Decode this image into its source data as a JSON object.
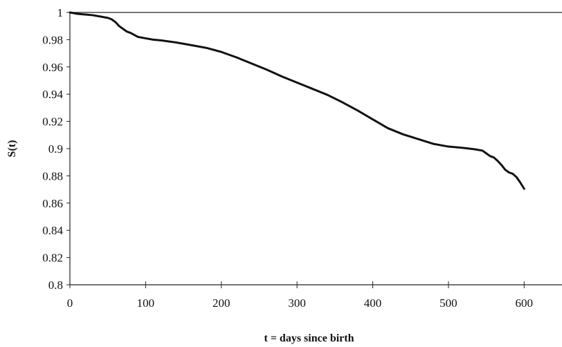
{
  "chart_data": {
    "type": "line",
    "title": "",
    "xlabel": "t = days since birth",
    "ylabel": "S(t)",
    "xlim": [
      0,
      650
    ],
    "ylim": [
      0.8,
      1.0
    ],
    "x_ticks": [
      0,
      100,
      200,
      300,
      400,
      500,
      600
    ],
    "x_tick_labels": [
      "0",
      "100",
      "200",
      "300",
      "400",
      "500",
      "600"
    ],
    "y_ticks": [
      0.8,
      0.82,
      0.84,
      0.86,
      0.88,
      0.9,
      0.92,
      0.94,
      0.96,
      0.98,
      1.0
    ],
    "y_tick_labels": [
      "0.8",
      "0.82",
      "0.84",
      "0.86",
      "0.88",
      "0.9",
      "0.92",
      "0.94",
      "0.96",
      "0.98",
      "1"
    ],
    "grid": false,
    "legend": "none",
    "series": [
      {
        "color": "#111111",
        "x": [
          0,
          5,
          10,
          20,
          30,
          40,
          50,
          55,
          60,
          65,
          70,
          75,
          80,
          90,
          100,
          110,
          120,
          140,
          160,
          180,
          200,
          220,
          240,
          260,
          280,
          300,
          320,
          340,
          360,
          380,
          400,
          420,
          440,
          460,
          480,
          500,
          520,
          535,
          545,
          550,
          555,
          560,
          565,
          570,
          575,
          580,
          585,
          590,
          595,
          600
        ],
        "y": [
          1.0,
          0.9995,
          0.999,
          0.9985,
          0.998,
          0.997,
          0.996,
          0.995,
          0.993,
          0.99,
          0.988,
          0.986,
          0.985,
          0.982,
          0.981,
          0.98,
          0.9795,
          0.978,
          0.976,
          0.974,
          0.971,
          0.967,
          0.9625,
          0.958,
          0.953,
          0.9485,
          0.944,
          0.9395,
          0.934,
          0.928,
          0.9215,
          0.915,
          0.9105,
          0.907,
          0.9035,
          0.9015,
          0.9005,
          0.8995,
          0.8985,
          0.8965,
          0.8945,
          0.8935,
          0.891,
          0.888,
          0.8845,
          0.8825,
          0.8815,
          0.879,
          0.875,
          0.8705
        ]
      }
    ]
  }
}
